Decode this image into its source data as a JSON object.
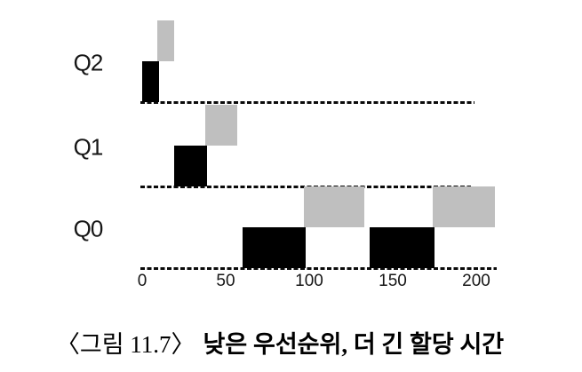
{
  "figure": {
    "caption_prefix": "〈그림 11.7〉",
    "caption_title": "낮은 우선순위, 더 긴 할당 시간"
  },
  "chart_data": {
    "type": "bar",
    "subtype": "gantt-scheduling-timeline",
    "title": "",
    "description": "MLFQ scheduling timeline: two jobs (black, gray) run through priority queues Q2, Q1, Q0 with longer time slices at lower priority",
    "queues": [
      "Q2",
      "Q1",
      "Q0"
    ],
    "jobs": [
      {
        "name": "black",
        "color": "#000000"
      },
      {
        "name": "gray",
        "color": "#bfbfbf"
      }
    ],
    "segments": [
      {
        "queue": "Q2",
        "job": "black",
        "start": 0,
        "end": 10
      },
      {
        "queue": "Q2",
        "job": "gray",
        "start": 9,
        "end": 19
      },
      {
        "queue": "Q1",
        "job": "black",
        "start": 19,
        "end": 39
      },
      {
        "queue": "Q1",
        "job": "gray",
        "start": 38,
        "end": 57
      },
      {
        "queue": "Q0",
        "job": "black",
        "start": 60,
        "end": 98
      },
      {
        "queue": "Q0",
        "job": "gray",
        "start": 97,
        "end": 133
      },
      {
        "queue": "Q0",
        "job": "black",
        "start": 136,
        "end": 175
      },
      {
        "queue": "Q0",
        "job": "gray",
        "start": 174,
        "end": 211
      }
    ],
    "x_axis": {
      "range": [
        -1,
        212
      ],
      "ticks": [
        {
          "value": 0,
          "label": "0"
        },
        {
          "value": 50,
          "label": "50"
        },
        {
          "value": 100,
          "label": "100"
        },
        {
          "value": 150,
          "label": "150"
        },
        {
          "value": 200,
          "label": "200"
        }
      ]
    },
    "baseline_extent": {
      "Q2": [
        -1,
        199
      ],
      "Q1": [
        -1,
        197
      ],
      "Q0": [
        -1,
        212
      ]
    },
    "grid": "dashed baseline per queue row",
    "legend": "none"
  }
}
